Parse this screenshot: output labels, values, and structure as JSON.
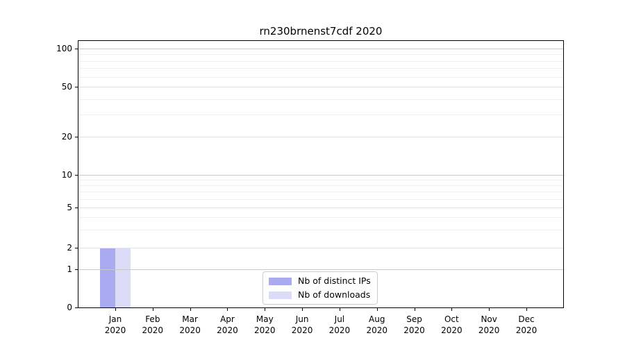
{
  "chart_data": {
    "type": "bar",
    "title": "rn230brnenst7cdf 2020",
    "categories": [
      {
        "month": "Jan",
        "year": "2020"
      },
      {
        "month": "Feb",
        "year": "2020"
      },
      {
        "month": "Mar",
        "year": "2020"
      },
      {
        "month": "Apr",
        "year": "2020"
      },
      {
        "month": "May",
        "year": "2020"
      },
      {
        "month": "Jun",
        "year": "2020"
      },
      {
        "month": "Jul",
        "year": "2020"
      },
      {
        "month": "Aug",
        "year": "2020"
      },
      {
        "month": "Sep",
        "year": "2020"
      },
      {
        "month": "Oct",
        "year": "2020"
      },
      {
        "month": "Nov",
        "year": "2020"
      },
      {
        "month": "Dec",
        "year": "2020"
      }
    ],
    "series": [
      {
        "name": "Nb of distinct IPs",
        "color": "#aaaaf0",
        "values": [
          2,
          0,
          0,
          0,
          0,
          0,
          0,
          0,
          0,
          0,
          0,
          0
        ]
      },
      {
        "name": "Nb of downloads",
        "color": "#dcdcf9",
        "values": [
          2,
          0,
          0,
          0,
          0,
          0,
          0,
          0,
          0,
          0,
          0,
          0
        ]
      }
    ],
    "yaxis": {
      "scale": "log-like",
      "tick_labels": [
        "100",
        "50",
        "20",
        "10",
        "5",
        "2",
        "1",
        "0"
      ],
      "tick_values": [
        100,
        50,
        20,
        10,
        5,
        2,
        1,
        0
      ],
      "range": [
        0,
        100
      ]
    },
    "xlabel": "",
    "ylabel": "",
    "grid": "horizontal",
    "legend_position": "inside-bottom-center"
  }
}
